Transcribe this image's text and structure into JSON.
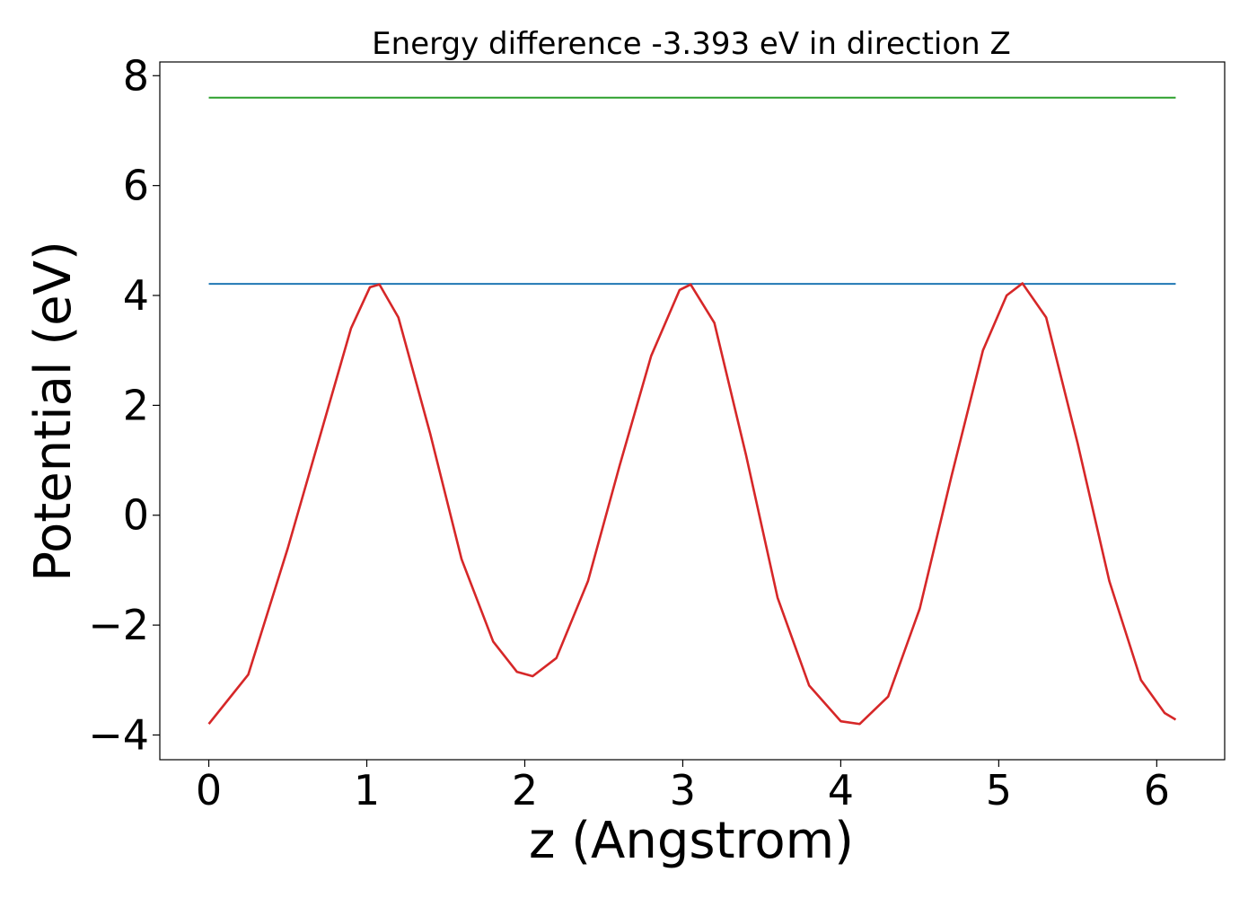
{
  "chart_data": {
    "type": "line",
    "title": "Energy difference -3.393 eV in direction Z",
    "xlabel": "z (Angstrom)",
    "ylabel": "Potential (eV)",
    "xlim": [
      -0.31,
      6.43
    ],
    "ylim": [
      -4.45,
      8.25
    ],
    "grid": false,
    "x_ticks": [
      {
        "value": 0,
        "label": "0"
      },
      {
        "value": 1,
        "label": "1"
      },
      {
        "value": 2,
        "label": "2"
      },
      {
        "value": 3,
        "label": "3"
      },
      {
        "value": 4,
        "label": "4"
      },
      {
        "value": 5,
        "label": "5"
      },
      {
        "value": 6,
        "label": "6"
      }
    ],
    "y_ticks": [
      {
        "value": -4,
        "label": "−4"
      },
      {
        "value": -2,
        "label": "−2"
      },
      {
        "value": 0,
        "label": "0"
      },
      {
        "value": 2,
        "label": "2"
      },
      {
        "value": 4,
        "label": "4"
      },
      {
        "value": 6,
        "label": "6"
      },
      {
        "value": 8,
        "label": "8"
      }
    ],
    "series": [
      {
        "color": "#2ca02c",
        "kind": "hline",
        "x": [
          0,
          6.12
        ],
        "y": [
          7.6,
          7.6
        ]
      },
      {
        "color": "#1f77b4",
        "kind": "hline",
        "x": [
          0,
          6.12
        ],
        "y": [
          4.21,
          4.21
        ]
      },
      {
        "color": "#d62728",
        "kind": "line",
        "x": [
          0.0,
          0.25,
          0.5,
          0.75,
          0.9,
          1.02,
          1.08,
          1.2,
          1.4,
          1.6,
          1.8,
          1.95,
          2.05,
          2.2,
          2.4,
          2.6,
          2.8,
          2.98,
          3.05,
          3.2,
          3.4,
          3.6,
          3.8,
          4.0,
          4.12,
          4.3,
          4.5,
          4.7,
          4.9,
          5.05,
          5.15,
          5.3,
          5.5,
          5.7,
          5.9,
          6.05,
          6.12
        ],
        "y": [
          -3.8,
          -2.9,
          -0.6,
          1.9,
          3.4,
          4.15,
          4.2,
          3.6,
          1.5,
          -0.8,
          -2.3,
          -2.85,
          -2.93,
          -2.6,
          -1.2,
          0.9,
          2.9,
          4.1,
          4.2,
          3.5,
          1.1,
          -1.5,
          -3.1,
          -3.75,
          -3.8,
          -3.3,
          -1.7,
          0.7,
          3.0,
          4.0,
          4.22,
          3.6,
          1.3,
          -1.2,
          -3.0,
          -3.6,
          -3.72
        ]
      }
    ]
  }
}
